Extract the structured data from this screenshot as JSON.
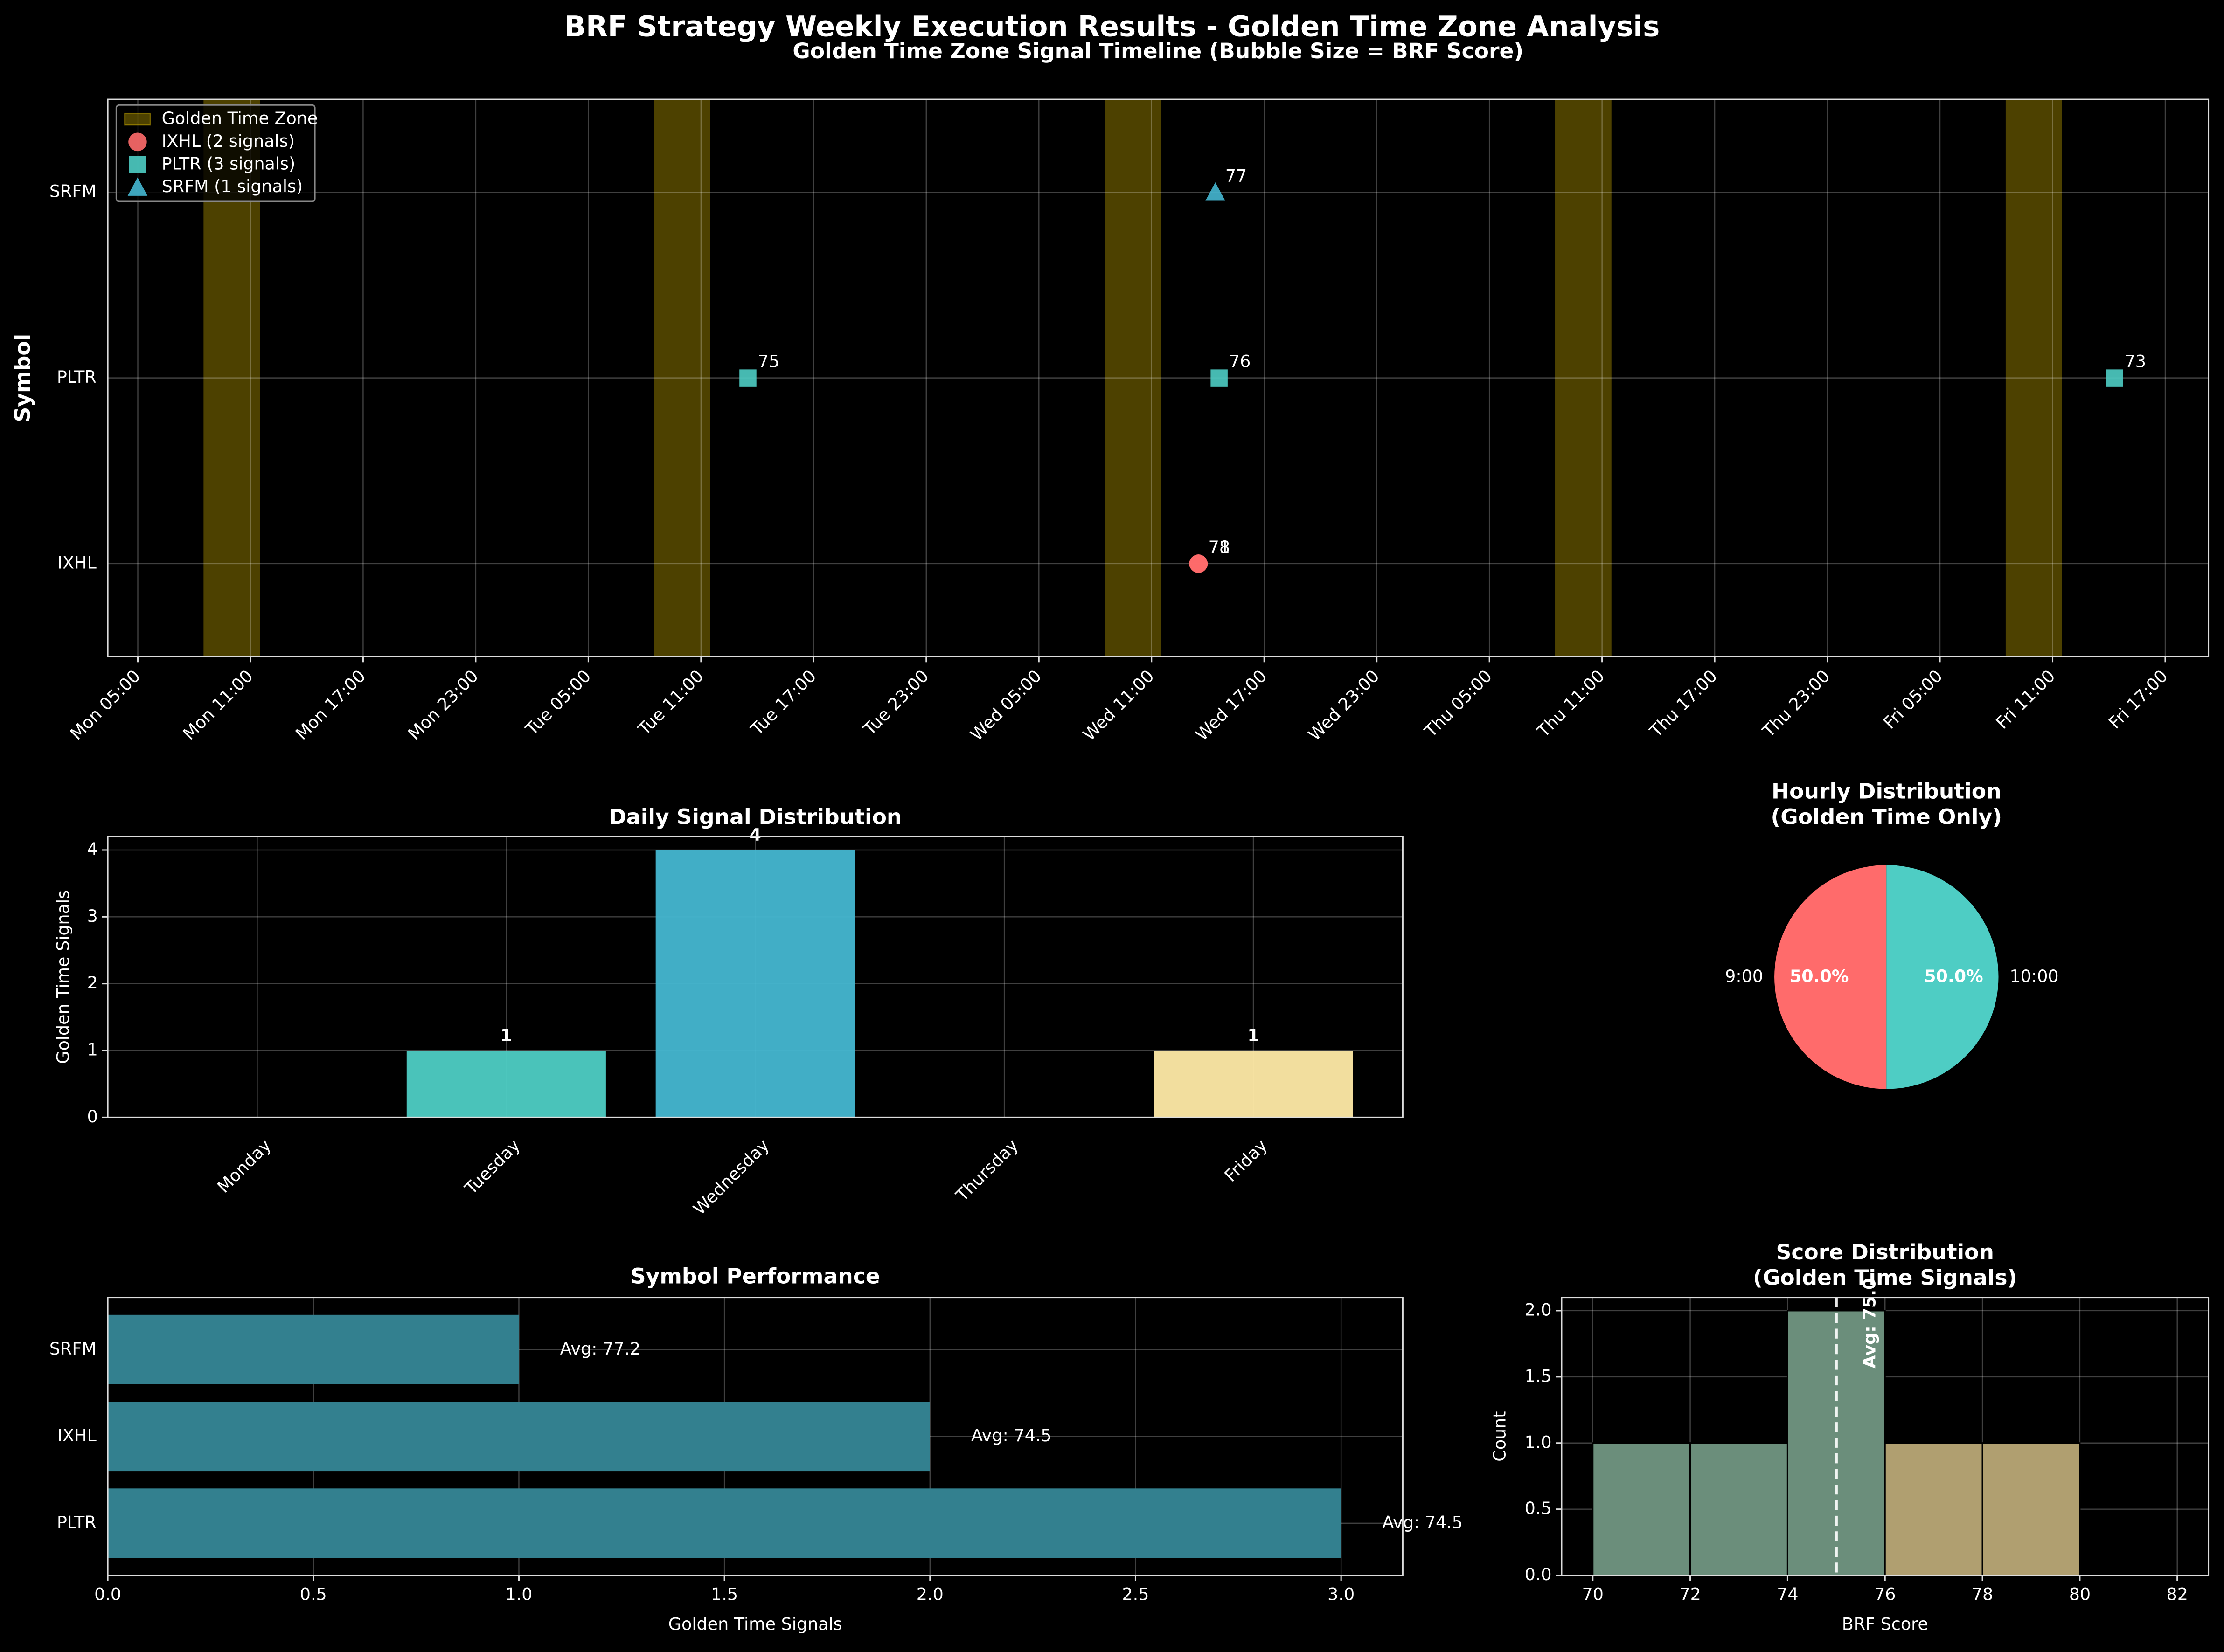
{
  "title": "BRF Strategy Weekly Execution Results - Golden Time Zone Analysis",
  "chart_data": [
    {
      "type": "scatter",
      "title": "Golden Time Zone Signal Timeline (Bubble Size = BRF Score)",
      "ylabel": "Symbol",
      "categories": [
        "IXHL",
        "PLTR",
        "SRFM"
      ],
      "xlim": [
        3.4,
        115.3
      ],
      "xticks": [
        {
          "value": 5,
          "label": "Mon 05:00"
        },
        {
          "value": 11,
          "label": "Mon 11:00"
        },
        {
          "value": 17,
          "label": "Mon 17:00"
        },
        {
          "value": 23,
          "label": "Mon 23:00"
        },
        {
          "value": 29,
          "label": "Tue 05:00"
        },
        {
          "value": 35,
          "label": "Tue 11:00"
        },
        {
          "value": 41,
          "label": "Tue 17:00"
        },
        {
          "value": 47,
          "label": "Tue 23:00"
        },
        {
          "value": 53,
          "label": "Wed 05:00"
        },
        {
          "value": 59,
          "label": "Wed 11:00"
        },
        {
          "value": 65,
          "label": "Wed 17:00"
        },
        {
          "value": 71,
          "label": "Wed 23:00"
        },
        {
          "value": 77,
          "label": "Thu 05:00"
        },
        {
          "value": 83,
          "label": "Thu 11:00"
        },
        {
          "value": 89,
          "label": "Thu 17:00"
        },
        {
          "value": 95,
          "label": "Thu 23:00"
        },
        {
          "value": 101,
          "label": "Fri 05:00"
        },
        {
          "value": 107,
          "label": "Fri 11:00"
        },
        {
          "value": 113,
          "label": "Fri 17:00"
        }
      ],
      "bands": {
        "name": "Golden Time Zone",
        "color": "#ffd700",
        "ranges": [
          [
            8.5,
            11.5
          ],
          [
            32.5,
            35.5
          ],
          [
            56.5,
            59.5
          ],
          [
            80.5,
            83.5
          ],
          [
            104.5,
            107.5
          ]
        ]
      },
      "series": [
        {
          "name": "IXHL (2 signals)",
          "color": "#ff6b6b",
          "marker": "circle",
          "symbol": "IXHL",
          "x": [
            61.5,
            61.5
          ],
          "sizes": [
            71,
            78
          ]
        },
        {
          "name": "PLTR (3 signals)",
          "color": "#4ecdc4",
          "marker": "square",
          "symbol": "PLTR",
          "x": [
            37.5,
            62.6,
            110.3
          ],
          "sizes": [
            75,
            76,
            73
          ]
        },
        {
          "name": "SRFM (1 signals)",
          "color": "#45b7d1",
          "marker": "triangle",
          "symbol": "SRFM",
          "x": [
            62.4
          ],
          "sizes": [
            77
          ]
        }
      ],
      "grid": true,
      "legend": "upper left"
    },
    {
      "type": "bar",
      "title": "Daily Signal Distribution",
      "ylabel": "Golden Time Signals",
      "categories": [
        "Monday",
        "Tuesday",
        "Wednesday",
        "Thursday",
        "Friday"
      ],
      "values": [
        0,
        1,
        4,
        0,
        1
      ],
      "colors": [
        "#ff6b6b",
        "#4ecdc4",
        "#45b7d1",
        "#96ceb4",
        "#ffeaa7"
      ],
      "ylim": [
        0,
        4.2
      ],
      "yticks": [
        0,
        1,
        2,
        3,
        4
      ],
      "grid": true
    },
    {
      "type": "pie",
      "title": [
        "Hourly Distribution",
        "(Golden Time Only)"
      ],
      "categories": [
        "9:00",
        "10:00"
      ],
      "values": [
        50,
        50
      ],
      "value_labels": [
        "50.0%",
        "50.0%"
      ],
      "colors": [
        "#ff6b6b",
        "#4ecdc4"
      ]
    },
    {
      "type": "hbar",
      "title": "Symbol Performance",
      "xlabel": "Golden Time Signals",
      "categories": [
        "PLTR",
        "IXHL",
        "SRFM"
      ],
      "values": [
        3,
        2,
        1
      ],
      "annotations": [
        "Avg: 74.5",
        "Avg: 74.5",
        "Avg: 77.2"
      ],
      "color": "#33808f",
      "xlim": [
        0,
        3.15
      ],
      "xticks": [
        {
          "value": 0,
          "label": "0.0"
        },
        {
          "value": 0.5,
          "label": "0.5"
        },
        {
          "value": 1,
          "label": "1.0"
        },
        {
          "value": 1.5,
          "label": "1.5"
        },
        {
          "value": 2,
          "label": "2.0"
        },
        {
          "value": 2.5,
          "label": "2.5"
        },
        {
          "value": 3,
          "label": "3.0"
        }
      ],
      "grid": true
    },
    {
      "type": "histogram",
      "title": [
        "Score Distribution",
        "(Golden Time Signals)"
      ],
      "xlabel": "BRF Score",
      "ylabel": "Count",
      "bins": [
        70,
        72,
        74,
        76,
        78,
        80
      ],
      "counts": [
        1,
        1,
        2,
        1,
        1
      ],
      "colors": [
        "#6b8e7b",
        "#6b8e7b",
        "#6b8e7b",
        "#b09f70",
        "#b09f70"
      ],
      "avg": 75,
      "avg_label": "Avg: 75.0",
      "xlim": [
        69.36,
        82.64
      ],
      "xticks": [
        70,
        72,
        74,
        76,
        78,
        80,
        82
      ],
      "ylim": [
        0,
        2.1
      ],
      "yticks": [
        {
          "value": 0,
          "label": "0.0"
        },
        {
          "value": 0.5,
          "label": "0.5"
        },
        {
          "value": 1,
          "label": "1.0"
        },
        {
          "value": 1.5,
          "label": "1.5"
        },
        {
          "value": 2,
          "label": "2.0"
        }
      ],
      "grid": true
    }
  ]
}
